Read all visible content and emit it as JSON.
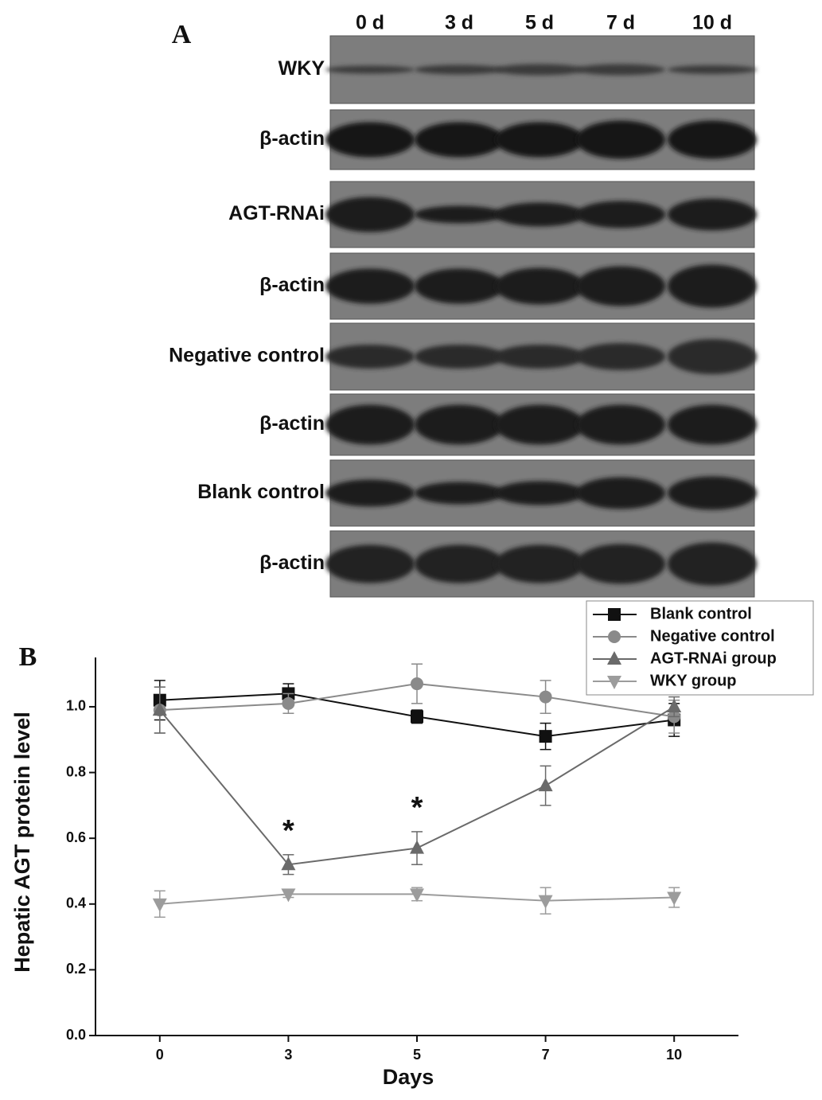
{
  "panel_a": {
    "panel_label": "A",
    "lanes": [
      "0 d",
      "3 d",
      "5 d",
      "7 d",
      "10 d"
    ],
    "rows": [
      "WKY",
      "β-actin",
      "AGT-RNAi",
      "β-actin",
      "Negative control",
      "β-actin",
      "Blank control",
      "β-actin"
    ]
  },
  "chart_data": {
    "type": "line",
    "panel_label": "B",
    "x_label": "Days",
    "y_label": "Hepatic AGT protein level",
    "categories": [
      "0",
      "3",
      "5",
      "7",
      "10"
    ],
    "ylim": [
      0,
      1.15
    ],
    "yticks": [
      {
        "value": 0,
        "label": "0.0"
      },
      {
        "value": 0.2,
        "label": "0.2"
      },
      {
        "value": 0.4,
        "label": "0.4"
      },
      {
        "value": 0.6,
        "label": "0.6"
      },
      {
        "value": 0.8,
        "label": "0.8"
      },
      {
        "value": 1,
        "label": "1.0"
      }
    ],
    "legend": "top-right",
    "series": [
      {
        "name": "Blank control",
        "color": "#111111",
        "marker": "square",
        "values": [
          1.02,
          1.04,
          0.97,
          0.91,
          0.96
        ],
        "errors": [
          0.06,
          0.03,
          0.02,
          0.04,
          0.05
        ]
      },
      {
        "name": "Negative control",
        "color": "#8a8a8a",
        "marker": "circle",
        "values": [
          0.99,
          1.01,
          1.07,
          1.03,
          0.97
        ],
        "errors": [
          0.07,
          0.03,
          0.06,
          0.05,
          0.05
        ]
      },
      {
        "name": "AGT-RNAi group",
        "color": "#6a6a6a",
        "marker": "triangle-up",
        "values": [
          0.99,
          0.52,
          0.57,
          0.76,
          1.0
        ],
        "errors": [
          0.07,
          0.03,
          0.05,
          0.06,
          0.03
        ]
      },
      {
        "name": "WKY group",
        "color": "#9c9c9c",
        "marker": "triangle-down",
        "values": [
          0.4,
          0.43,
          0.43,
          0.41,
          0.42
        ],
        "errors": [
          0.04,
          0.01,
          0.02,
          0.04,
          0.03
        ]
      }
    ],
    "annotations": [
      {
        "text": "*",
        "x": "3"
      },
      {
        "text": "*",
        "x": "5"
      }
    ]
  }
}
